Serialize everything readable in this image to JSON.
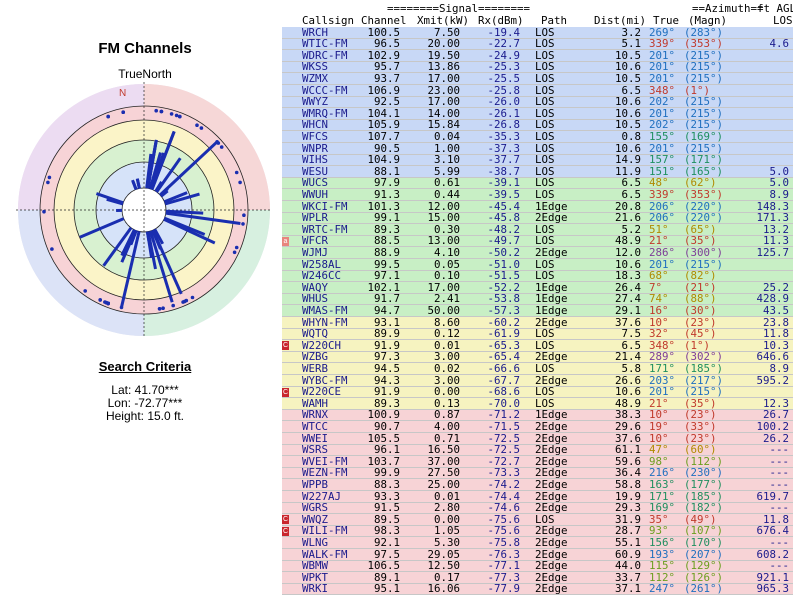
{
  "left": {
    "title": "FM Channels",
    "north_label": "TrueNorth",
    "north_marker": "N",
    "criteria_title": "Search Criteria",
    "lat": "Lat: 41.70***",
    "lon": "Lon: -72.77***",
    "height": "Height: 15.0 ft."
  },
  "header": {
    "signal_group": "========Signal========",
    "azimuth_group": "==Azimuth==",
    "ft_agl": "ft AGL",
    "callsign": "Callsign",
    "channel": "Channel",
    "xmit": "Xmit(kW)",
    "rx": "Rx(dBm)",
    "path": "Path",
    "dist": "Dist(mi)",
    "true": "True",
    "magn": "(Magn)",
    "los": "LOS"
  },
  "colors": {
    "band_blue": "#c8d8f6",
    "band_green": "#c8efc5",
    "band_yellow": "#f6f3c0",
    "band_pink": "#f7d3d6",
    "spoke_blue": "#1a2eb0",
    "badge_red": "#c9262d"
  },
  "rows": [
    {
      "badge": "",
      "call": "WRCH",
      "ch": "100.5",
      "xmit": "7.50",
      "rx": "-19.4",
      "path": "LOS",
      "dist": "3.2",
      "true": "269°",
      "magn": "(283°)",
      "los": "",
      "tc": "#1f6fbf"
    },
    {
      "badge": "",
      "call": "WTIC-FM",
      "ch": "96.5",
      "xmit": "20.00",
      "rx": "-22.7",
      "path": "LOS",
      "dist": "5.1",
      "true": "339°",
      "magn": "(353°)",
      "los": "4.6",
      "tc": "#c0392b"
    },
    {
      "badge": "",
      "call": "WDRC-FM",
      "ch": "102.9",
      "xmit": "19.50",
      "rx": "-24.9",
      "path": "LOS",
      "dist": "10.5",
      "true": "201°",
      "magn": "(215°)",
      "los": "",
      "tc": "#1f6fbf"
    },
    {
      "badge": "",
      "call": "WKSS",
      "ch": "95.7",
      "xmit": "13.86",
      "rx": "-25.3",
      "path": "LOS",
      "dist": "10.6",
      "true": "201°",
      "magn": "(215°)",
      "los": "",
      "tc": "#1f6fbf"
    },
    {
      "badge": "",
      "call": "WZMX",
      "ch": "93.7",
      "xmit": "17.00",
      "rx": "-25.5",
      "path": "LOS",
      "dist": "10.5",
      "true": "201°",
      "magn": "(215°)",
      "los": "",
      "tc": "#1f6fbf"
    },
    {
      "badge": "",
      "call": "WCCC-FM",
      "ch": "106.9",
      "xmit": "23.00",
      "rx": "-25.8",
      "path": "LOS",
      "dist": "6.5",
      "true": "348°",
      "magn": "(1°)",
      "los": "",
      "tc": "#c0392b"
    },
    {
      "badge": "",
      "call": "WWYZ",
      "ch": "92.5",
      "xmit": "17.00",
      "rx": "-26.0",
      "path": "LOS",
      "dist": "10.6",
      "true": "202°",
      "magn": "(215°)",
      "los": "",
      "tc": "#1f6fbf"
    },
    {
      "badge": "",
      "call": "WMRQ-FM",
      "ch": "104.1",
      "xmit": "14.00",
      "rx": "-26.1",
      "path": "LOS",
      "dist": "10.6",
      "true": "201°",
      "magn": "(215°)",
      "los": "",
      "tc": "#1f6fbf"
    },
    {
      "badge": "",
      "call": "WHCN",
      "ch": "105.9",
      "xmit": "15.84",
      "rx": "-26.8",
      "path": "LOS",
      "dist": "10.5",
      "true": "202°",
      "magn": "(215°)",
      "los": "",
      "tc": "#1f6fbf"
    },
    {
      "badge": "",
      "call": "WFCS",
      "ch": "107.7",
      "xmit": "0.04",
      "rx": "-35.3",
      "path": "LOS",
      "dist": "0.8",
      "true": "155°",
      "magn": "(169°)",
      "los": "",
      "tc": "#1f8f5f"
    },
    {
      "badge": "",
      "call": "WNPR",
      "ch": "90.5",
      "xmit": "1.00",
      "rx": "-37.3",
      "path": "LOS",
      "dist": "10.6",
      "true": "201°",
      "magn": "(215°)",
      "los": "",
      "tc": "#1f6fbf"
    },
    {
      "badge": "",
      "call": "WIHS",
      "ch": "104.9",
      "xmit": "3.10",
      "rx": "-37.7",
      "path": "LOS",
      "dist": "14.9",
      "true": "157°",
      "magn": "(171°)",
      "los": "",
      "tc": "#1f8f5f"
    },
    {
      "badge": "",
      "call": "WESU",
      "ch": "88.1",
      "xmit": "5.99",
      "rx": "-38.7",
      "path": "LOS",
      "dist": "11.9",
      "true": "151°",
      "magn": "(165°)",
      "los": "5.0",
      "tc": "#1f8f5f"
    },
    {
      "badge": "",
      "call": "WUCS",
      "ch": "97.9",
      "xmit": "0.61",
      "rx": "-39.1",
      "path": "LOS",
      "dist": "6.5",
      "true": "48°",
      "magn": "(62°)",
      "los": "5.0",
      "tc": "#b08a00"
    },
    {
      "badge": "",
      "call": "WWUH",
      "ch": "91.3",
      "xmit": "0.44",
      "rx": "-39.5",
      "path": "LOS",
      "dist": "6.5",
      "true": "339°",
      "magn": "(353°)",
      "los": "8.9",
      "tc": "#c0392b"
    },
    {
      "badge": "",
      "call": "WKCI-FM",
      "ch": "101.3",
      "xmit": "12.00",
      "rx": "-45.4",
      "path": "1Edge",
      "dist": "20.8",
      "true": "206°",
      "magn": "(220°)",
      "los": "148.3",
      "tc": "#1f6fbf"
    },
    {
      "badge": "",
      "call": "WPLR",
      "ch": "99.1",
      "xmit": "15.00",
      "rx": "-45.8",
      "path": "2Edge",
      "dist": "21.6",
      "true": "206°",
      "magn": "(220°)",
      "los": "171.3",
      "tc": "#1f6fbf"
    },
    {
      "badge": "",
      "call": "WRTC-FM",
      "ch": "89.3",
      "xmit": "0.30",
      "rx": "-48.2",
      "path": "LOS",
      "dist": "5.2",
      "true": "51°",
      "magn": "(65°)",
      "los": "13.2",
      "tc": "#b08a00"
    },
    {
      "badge": "a",
      "call": "WFCR",
      "ch": "88.5",
      "xmit": "13.00",
      "rx": "-49.7",
      "path": "LOS",
      "dist": "48.9",
      "true": "21°",
      "magn": "(35°)",
      "los": "11.3",
      "tc": "#c0392b"
    },
    {
      "badge": "",
      "call": "WJMJ",
      "ch": "88.9",
      "xmit": "4.10",
      "rx": "-50.2",
      "path": "2Edge",
      "dist": "12.0",
      "true": "286°",
      "magn": "(300°)",
      "los": "125.7",
      "tc": "#7d3c98"
    },
    {
      "badge": "",
      "call": "W258AL",
      "ch": "99.5",
      "xmit": "0.05",
      "rx": "-51.0",
      "path": "LOS",
      "dist": "10.6",
      "true": "201°",
      "magn": "(215°)",
      "los": "",
      "tc": "#1f6fbf"
    },
    {
      "badge": "",
      "call": "W246CC",
      "ch": "97.1",
      "xmit": "0.10",
      "rx": "-51.5",
      "path": "LOS",
      "dist": "18.3",
      "true": "68°",
      "magn": "(82°)",
      "los": "",
      "tc": "#b08a00"
    },
    {
      "badge": "",
      "call": "WAQY",
      "ch": "102.1",
      "xmit": "17.00",
      "rx": "-52.2",
      "path": "1Edge",
      "dist": "26.4",
      "true": "7°",
      "magn": "(21°)",
      "los": "25.2",
      "tc": "#c0392b"
    },
    {
      "badge": "",
      "call": "WHUS",
      "ch": "91.7",
      "xmit": "2.41",
      "rx": "-53.8",
      "path": "1Edge",
      "dist": "27.4",
      "true": "74°",
      "magn": "(88°)",
      "los": "428.9",
      "tc": "#b08a00"
    },
    {
      "badge": "",
      "call": "WMAS-FM",
      "ch": "94.7",
      "xmit": "50.00",
      "rx": "-57.3",
      "path": "1Edge",
      "dist": "29.1",
      "true": "16°",
      "magn": "(30°)",
      "los": "43.5",
      "tc": "#c0392b"
    },
    {
      "badge": "",
      "call": "WHYN-FM",
      "ch": "93.1",
      "xmit": "8.60",
      "rx": "-60.2",
      "path": "2Edge",
      "dist": "37.6",
      "true": "10°",
      "magn": "(23°)",
      "los": "23.8",
      "tc": "#c0392b"
    },
    {
      "badge": "",
      "call": "WQTQ",
      "ch": "89.9",
      "xmit": "0.12",
      "rx": "-61.9",
      "path": "LOS",
      "dist": "7.5",
      "true": "32°",
      "magn": "(45°)",
      "los": "11.8",
      "tc": "#c0392b"
    },
    {
      "badge": "C",
      "call": "W220CH",
      "ch": "91.9",
      "xmit": "0.01",
      "rx": "-65.3",
      "path": "LOS",
      "dist": "6.5",
      "true": "348°",
      "magn": "(1°)",
      "los": "10.3",
      "tc": "#c0392b"
    },
    {
      "badge": "",
      "call": "WZBG",
      "ch": "97.3",
      "xmit": "3.00",
      "rx": "-65.4",
      "path": "2Edge",
      "dist": "21.4",
      "true": "289°",
      "magn": "(302°)",
      "los": "646.6",
      "tc": "#7d3c98"
    },
    {
      "badge": "",
      "call": "WERB",
      "ch": "94.5",
      "xmit": "0.02",
      "rx": "-66.6",
      "path": "LOS",
      "dist": "5.8",
      "true": "171°",
      "magn": "(185°)",
      "los": "8.9",
      "tc": "#1f8f5f"
    },
    {
      "badge": "",
      "call": "WYBC-FM",
      "ch": "94.3",
      "xmit": "3.00",
      "rx": "-67.7",
      "path": "2Edge",
      "dist": "26.6",
      "true": "203°",
      "magn": "(217°)",
      "los": "595.2",
      "tc": "#1f6fbf"
    },
    {
      "badge": "C",
      "call": "W220CE",
      "ch": "91.9",
      "xmit": "0.00",
      "rx": "-68.6",
      "path": "LOS",
      "dist": "10.6",
      "true": "201°",
      "magn": "(215°)",
      "los": "",
      "tc": "#1f6fbf"
    },
    {
      "badge": "",
      "call": "WAMH",
      "ch": "89.3",
      "xmit": "0.13",
      "rx": "-70.0",
      "path": "LOS",
      "dist": "48.9",
      "true": "21°",
      "magn": "(35°)",
      "los": "12.3",
      "tc": "#c0392b"
    },
    {
      "badge": "",
      "call": "WRNX",
      "ch": "100.9",
      "xmit": "0.87",
      "rx": "-71.2",
      "path": "1Edge",
      "dist": "38.3",
      "true": "10°",
      "magn": "(23°)",
      "los": "26.7",
      "tc": "#c0392b"
    },
    {
      "badge": "",
      "call": "WTCC",
      "ch": "90.7",
      "xmit": "4.00",
      "rx": "-71.5",
      "path": "2Edge",
      "dist": "29.6",
      "true": "19°",
      "magn": "(33°)",
      "los": "100.2",
      "tc": "#c0392b"
    },
    {
      "badge": "",
      "call": "WWEI",
      "ch": "105.5",
      "xmit": "0.71",
      "rx": "-72.5",
      "path": "2Edge",
      "dist": "37.6",
      "true": "10°",
      "magn": "(23°)",
      "los": "26.2",
      "tc": "#c0392b"
    },
    {
      "badge": "",
      "call": "WSRS",
      "ch": "96.1",
      "xmit": "16.50",
      "rx": "-72.5",
      "path": "2Edge",
      "dist": "61.1",
      "true": "47°",
      "magn": "(60°)",
      "los": "---",
      "tc": "#b08a00"
    },
    {
      "badge": "",
      "call": "WVEI-FM",
      "ch": "103.7",
      "xmit": "37.00",
      "rx": "-72.7",
      "path": "2Edge",
      "dist": "59.6",
      "true": "98°",
      "magn": "(112°)",
      "los": "---",
      "tc": "#6b9e1f"
    },
    {
      "badge": "",
      "call": "WEZN-FM",
      "ch": "99.9",
      "xmit": "27.50",
      "rx": "-73.3",
      "path": "2Edge",
      "dist": "36.4",
      "true": "216°",
      "magn": "(230°)",
      "los": "---",
      "tc": "#1f6fbf"
    },
    {
      "badge": "",
      "call": "WPPB",
      "ch": "88.3",
      "xmit": "25.00",
      "rx": "-74.2",
      "path": "2Edge",
      "dist": "58.8",
      "true": "163°",
      "magn": "(177°)",
      "los": "---",
      "tc": "#1f8f5f"
    },
    {
      "badge": "",
      "call": "W227AJ",
      "ch": "93.3",
      "xmit": "0.01",
      "rx": "-74.4",
      "path": "2Edge",
      "dist": "19.9",
      "true": "171°",
      "magn": "(185°)",
      "los": "619.7",
      "tc": "#1f8f5f"
    },
    {
      "badge": "",
      "call": "WGRS",
      "ch": "91.5",
      "xmit": "2.80",
      "rx": "-74.6",
      "path": "2Edge",
      "dist": "29.3",
      "true": "169°",
      "magn": "(182°)",
      "los": "---",
      "tc": "#1f8f5f"
    },
    {
      "badge": "C",
      "call": "WWQZ",
      "ch": "89.5",
      "xmit": "0.00",
      "rx": "-75.6",
      "path": "LOS",
      "dist": "31.9",
      "true": "35°",
      "magn": "(49°)",
      "los": "11.8",
      "tc": "#c0392b"
    },
    {
      "badge": "C",
      "call": "WILI-FM",
      "ch": "98.3",
      "xmit": "1.05",
      "rx": "-75.6",
      "path": "2Edge",
      "dist": "28.7",
      "true": "93°",
      "magn": "(107°)",
      "los": "676.4",
      "tc": "#6b9e1f"
    },
    {
      "badge": "",
      "call": "WLNG",
      "ch": "92.1",
      "xmit": "5.30",
      "rx": "-75.8",
      "path": "2Edge",
      "dist": "55.1",
      "true": "156°",
      "magn": "(170°)",
      "los": "---",
      "tc": "#1f8f5f"
    },
    {
      "badge": "",
      "call": "WALK-FM",
      "ch": "97.5",
      "xmit": "29.05",
      "rx": "-76.3",
      "path": "2Edge",
      "dist": "60.9",
      "true": "193°",
      "magn": "(207°)",
      "los": "608.2",
      "tc": "#1f6fbf"
    },
    {
      "badge": "",
      "call": "WBMW",
      "ch": "106.5",
      "xmit": "12.50",
      "rx": "-77.1",
      "path": "2Edge",
      "dist": "44.0",
      "true": "115°",
      "magn": "(129°)",
      "los": "---",
      "tc": "#6b9e1f"
    },
    {
      "badge": "",
      "call": "WPKT",
      "ch": "89.1",
      "xmit": "0.17",
      "rx": "-77.3",
      "path": "2Edge",
      "dist": "33.7",
      "true": "112°",
      "magn": "(126°)",
      "los": "921.1",
      "tc": "#6b9e1f"
    },
    {
      "badge": "",
      "call": "WRKI",
      "ch": "95.1",
      "xmit": "16.06",
      "rx": "-77.9",
      "path": "2Edge",
      "dist": "37.1",
      "true": "247°",
      "magn": "(261°)",
      "los": "965.3",
      "tc": "#1f6fbf"
    }
  ]
}
